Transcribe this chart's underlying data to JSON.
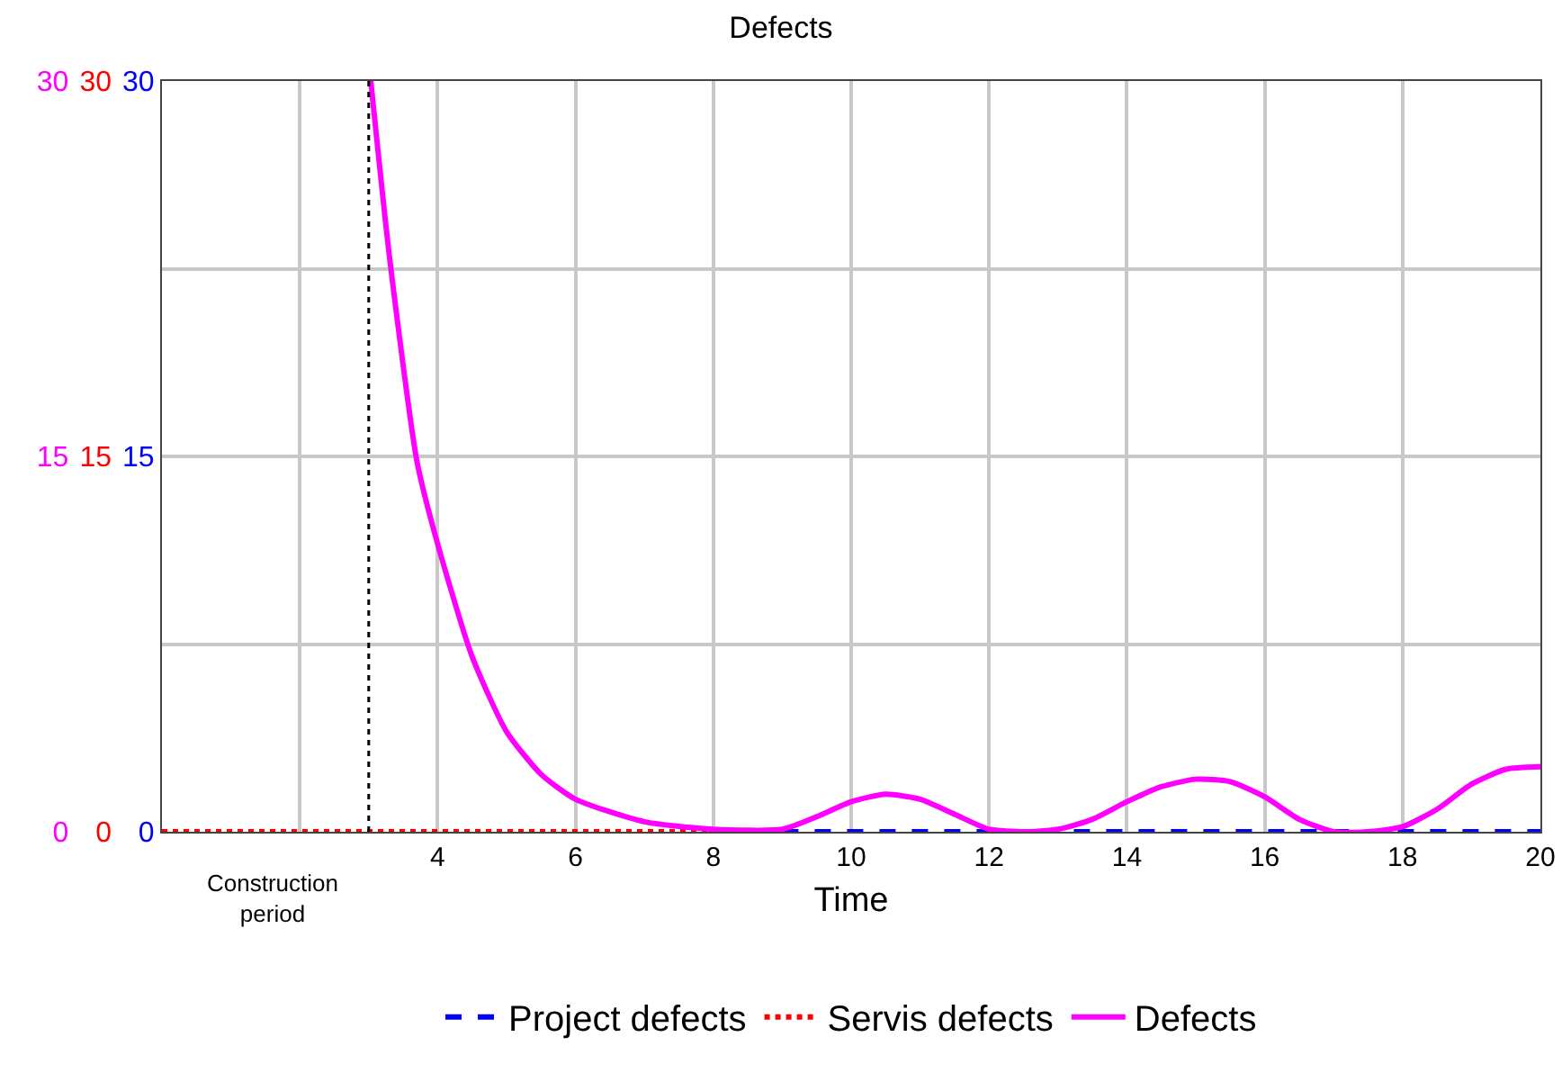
{
  "chart_data": {
    "type": "line",
    "title": "Defects",
    "xlabel": "Time",
    "xlim": [
      0,
      20
    ],
    "xticks": [
      {
        "value": 2,
        "label": null
      },
      4,
      6,
      8,
      10,
      12,
      14,
      16,
      18,
      20
    ],
    "ylim": [
      0,
      30
    ],
    "yticks": [
      0,
      {
        "value": 7.5,
        "label": null
      },
      15,
      {
        "value": 22.5,
        "label": null
      },
      30
    ],
    "y2lim": [
      0,
      30
    ],
    "y2ticks": [
      0,
      15,
      30
    ],
    "y3lim": [
      0,
      30
    ],
    "y3ticks": [
      0,
      15,
      30
    ],
    "grid": true,
    "legend": "bottom",
    "marker": "none",
    "ref_lines": [
      {
        "axis": "x",
        "value": 3,
        "color": "#000000",
        "line_style": "dotted"
      }
    ],
    "annotations": [
      "Construction\nperiod"
    ],
    "series": [
      {
        "name": "Project defects",
        "color": "#0000ff",
        "line_style": "dashed",
        "axis": "y",
        "x": [
          9,
          20
        ],
        "values": [
          0,
          0
        ]
      },
      {
        "name": "Servis defects",
        "color": "#ff0000",
        "line_style": "dotted",
        "axis": "y2",
        "x": [
          0,
          9
        ],
        "values": [
          0,
          0
        ]
      },
      {
        "name": "Defects",
        "color": "#ff00ff",
        "line_style": "solid",
        "axis": "y3",
        "x": [
          3.03,
          3.3,
          3.7,
          4,
          4.5,
          5,
          5.5,
          6,
          7,
          8,
          9,
          9.5,
          10,
          10.5,
          11,
          11.5,
          12,
          12.5,
          13,
          13.5,
          14,
          14.5,
          15,
          15.5,
          16,
          16.5,
          17,
          17.5,
          18,
          18.5,
          19,
          19.5,
          20
        ],
        "values": [
          30,
          23,
          14.8,
          11.5,
          7,
          4,
          2.3,
          1.3,
          0.4,
          0.1,
          0.1,
          0.6,
          1.2,
          1.5,
          1.3,
          0.7,
          0.1,
          0,
          0.1,
          0.5,
          1.2,
          1.8,
          2.1,
          2,
          1.4,
          0.5,
          0,
          0,
          0.2,
          0.9,
          1.9,
          2.5,
          2.6
        ]
      }
    ]
  }
}
